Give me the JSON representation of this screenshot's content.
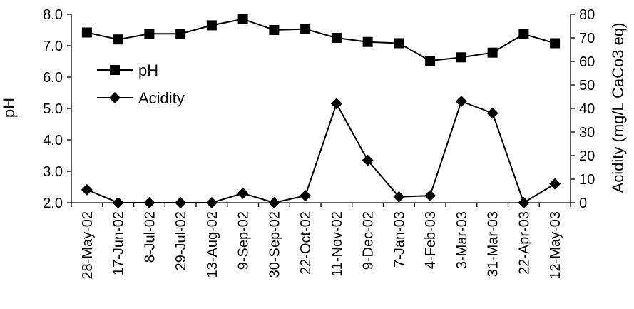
{
  "chart_data": {
    "type": "line",
    "categories": [
      "28-May-02",
      "17-Jun-02",
      "8-Jul-02",
      "29-Jul-02",
      "13-Aug-02",
      "9-Sep-02",
      "30-Sep-02",
      "22-Oct-02",
      "11-Nov-02",
      "9-Dec-02",
      "7-Jan-03",
      "4-Feb-03",
      "3-Mar-03",
      "31-Mar-03",
      "22-Apr-03",
      "12-May-03"
    ],
    "ylabel": "pH",
    "y2label": "Acidity (mg/L CaCo3 eq)",
    "ylim": [
      2.0,
      8.0
    ],
    "y2lim": [
      0,
      80
    ],
    "yticks": [
      "2.0",
      "3.0",
      "4.0",
      "5.0",
      "6.0",
      "7.0",
      "8.0"
    ],
    "y2ticks": [
      "0",
      "10",
      "20",
      "30",
      "40",
      "50",
      "60",
      "70",
      "80"
    ],
    "legend_position": "upper-left",
    "series": [
      {
        "name": "pH",
        "axis": "left",
        "marker": "square",
        "color": "#000000",
        "values": [
          7.42,
          7.2,
          7.38,
          7.38,
          7.65,
          7.85,
          7.5,
          7.53,
          7.25,
          7.12,
          7.08,
          6.52,
          6.63,
          6.78,
          7.37,
          7.08
        ]
      },
      {
        "name": "Acidity",
        "axis": "right",
        "marker": "diamond",
        "color": "#000000",
        "values": [
          5.5,
          0,
          0,
          0,
          0,
          4,
          0,
          3,
          42,
          18,
          2.5,
          3,
          43,
          38,
          0,
          8
        ]
      }
    ]
  }
}
